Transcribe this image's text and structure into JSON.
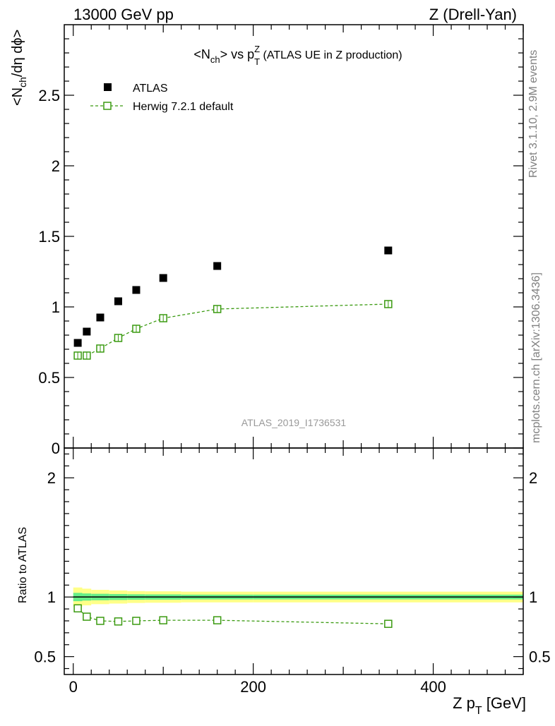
{
  "header": {
    "energy": "13000 GeV pp",
    "process": "Z (Drell-Yan)"
  },
  "side_text": {
    "rivet": "Rivet 3.1.10,  2.9M events",
    "mcplots": "mcplots.cern.ch [arXiv:1306.3436]"
  },
  "colors": {
    "data": "#000000",
    "herwig": "#3a9a10",
    "band_inner": "#66ee88",
    "band_outer": "#ffff88"
  },
  "chart_data": [
    {
      "type": "scatter",
      "title": {
        "pre": "<N",
        "sub1": "ch",
        "mid": "> vs p",
        "sup": "Z",
        "sub2": "T",
        "post": " (ATLAS UE in Z production)"
      },
      "ylabel": {
        "pre": "<N",
        "sub": "ch",
        "post": "/dη dϕ>"
      },
      "watermark": "ATLAS_2019_I1736531",
      "xlim": [
        -10,
        500
      ],
      "ylim": [
        0,
        3
      ],
      "yticks": [
        "0",
        "0.5",
        "1",
        "1.5",
        "2",
        "2.5"
      ],
      "x": [
        5,
        15,
        30,
        50,
        70,
        100,
        160,
        350
      ],
      "series": [
        {
          "name": "ATLAS",
          "marker": "filled-square",
          "values": [
            0.745,
            0.825,
            0.925,
            1.04,
            1.12,
            1.205,
            1.29,
            1.4
          ]
        },
        {
          "name": "Herwig 7.2.1 default",
          "marker": "open-square-dashed",
          "values": [
            0.655,
            0.655,
            0.705,
            0.78,
            0.845,
            0.92,
            0.985,
            1.02
          ]
        }
      ]
    },
    {
      "type": "line",
      "ylabel": "Ratio to ATLAS",
      "xlabel": {
        "pre": "Z p",
        "sub": "T",
        "post": " [GeV]"
      },
      "xlim": [
        -10,
        500
      ],
      "ylim": [
        0.35,
        2.25
      ],
      "yticks": [
        "0.5",
        "1",
        "2"
      ],
      "xticks": [
        "0",
        "200",
        "400"
      ],
      "x": [
        5,
        15,
        30,
        50,
        70,
        100,
        160,
        350
      ],
      "series": [
        {
          "name": "Herwig 7.2.1 default",
          "values": [
            0.905,
            0.835,
            0.8,
            0.795,
            0.8,
            0.805,
            0.805,
            0.775
          ]
        }
      ],
      "bands": {
        "edges": [
          0,
          10,
          20,
          40,
          60,
          80,
          120,
          200,
          500
        ],
        "inner": [
          0.035,
          0.03,
          0.027,
          0.025,
          0.023,
          0.022,
          0.02,
          0.02
        ],
        "outer": [
          0.08,
          0.07,
          0.06,
          0.055,
          0.05,
          0.048,
          0.045,
          0.045
        ]
      }
    }
  ]
}
